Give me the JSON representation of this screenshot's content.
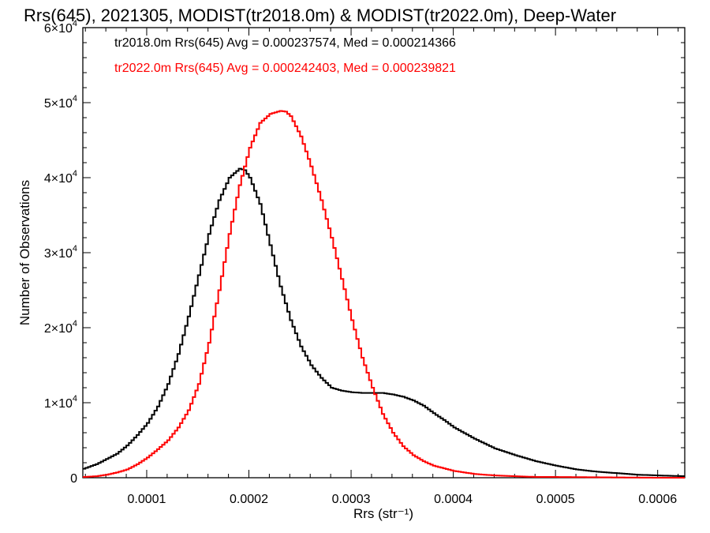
{
  "chart_data": {
    "type": "line",
    "title": "Rrs(645), 2021305, MODIST(tr2018.0m) & MODIST(tr2022.0m), Deep-Water",
    "xlabel": "Rrs (str⁻¹)",
    "ylabel": "Number of Observations",
    "xlim": [
      3.75e-05,
      0.0006265
    ],
    "ylim": [
      0,
      60000
    ],
    "xticks": [
      {
        "value": 0.0001,
        "label": "0.0001"
      },
      {
        "value": 0.0002,
        "label": "0.0002"
      },
      {
        "value": 0.0003,
        "label": "0.0003"
      },
      {
        "value": 0.0004,
        "label": "0.0004"
      },
      {
        "value": 0.0005,
        "label": "0.0005"
      },
      {
        "value": 0.0006,
        "label": "0.0006"
      }
    ],
    "yticks": [
      {
        "value": 0,
        "mant": "0",
        "exp": ""
      },
      {
        "value": 10000,
        "mant": "1×10",
        "exp": "4"
      },
      {
        "value": 20000,
        "mant": "2×10",
        "exp": "4"
      },
      {
        "value": 30000,
        "mant": "3×10",
        "exp": "4"
      },
      {
        "value": 40000,
        "mant": "4×10",
        "exp": "4"
      },
      {
        "value": 50000,
        "mant": "5×10",
        "exp": "4"
      },
      {
        "value": 60000,
        "mant": "6×10",
        "exp": "4"
      }
    ],
    "annotations": [
      {
        "text": "tr2018.0m Rrs(645) Avg = 0.000237574, Med = 0.000214366",
        "color": "#000000"
      },
      {
        "text": "tr2022.0m Rrs(645) Avg = 0.000242403, Med = 0.000239821",
        "color": "#ff0000"
      }
    ],
    "series": [
      {
        "color": "#000000",
        "x": [
          3.75e-05,
          5e-05,
          6e-05,
          7e-05,
          8e-05,
          9e-05,
          0.0001,
          0.00011,
          0.00012,
          0.00013,
          0.00014,
          0.00015,
          0.00016,
          0.00017,
          0.00018,
          0.00019,
          0.000195,
          0.0002,
          0.00021,
          0.00022,
          0.00023,
          0.00024,
          0.00025,
          0.00026,
          0.00027,
          0.00028,
          0.00029,
          0.0003,
          0.00031,
          0.00032,
          0.00033,
          0.00034,
          0.00035,
          0.00036,
          0.00037,
          0.00038,
          0.00039,
          0.0004,
          0.00042,
          0.00044,
          0.00046,
          0.00048,
          0.0005,
          0.00052,
          0.00054,
          0.00056,
          0.00058,
          0.0006,
          0.0006265
        ],
        "y": [
          1200,
          1800,
          2500,
          3200,
          4300,
          5700,
          7300,
          9500,
          12500,
          16500,
          21500,
          27000,
          32500,
          37000,
          40000,
          41200,
          41000,
          40000,
          36500,
          31000,
          25500,
          21000,
          17500,
          15000,
          13300,
          12000,
          11600,
          11400,
          11300,
          11300,
          11300,
          11100,
          10800,
          10300,
          9600,
          8600,
          7700,
          6700,
          5200,
          3900,
          3000,
          2200,
          1600,
          1100,
          800,
          600,
          400,
          300,
          200
        ]
      },
      {
        "color": "#ff0000",
        "x": [
          3.75e-05,
          5e-05,
          6e-05,
          7e-05,
          8e-05,
          9e-05,
          0.0001,
          0.00011,
          0.00012,
          0.00013,
          0.00014,
          0.00015,
          0.00016,
          0.00017,
          0.00018,
          0.00019,
          0.0002,
          0.00021,
          0.00022,
          0.00023,
          0.000235,
          0.00024,
          0.00025,
          0.00026,
          0.00027,
          0.00028,
          0.00029,
          0.0003,
          0.00031,
          0.00032,
          0.00033,
          0.00034,
          0.00035,
          0.00036,
          0.00037,
          0.00038,
          0.0004,
          0.00042,
          0.00044,
          0.00046,
          0.00048,
          0.0005,
          0.00055,
          0.0006,
          0.0006265
        ],
        "y": [
          100,
          200,
          400,
          700,
          1100,
          1800,
          2700,
          3800,
          5000,
          6700,
          9000,
          12500,
          18000,
          25000,
          32500,
          39000,
          44000,
          47300,
          48500,
          48900,
          48800,
          48200,
          45500,
          41500,
          37000,
          32000,
          26500,
          21000,
          16000,
          12000,
          8500,
          6000,
          4200,
          3000,
          2200,
          1600,
          900,
          500,
          300,
          200,
          100,
          100,
          50,
          0,
          0
        ]
      }
    ]
  }
}
